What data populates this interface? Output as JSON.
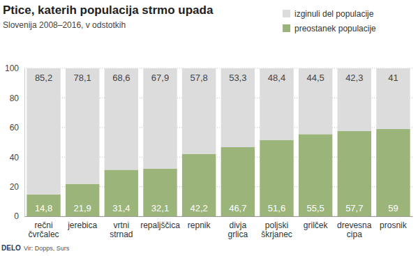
{
  "chart_data": {
    "type": "bar",
    "title": "Ptice, katerih populacija strmo upada",
    "subtitle": "Slovenija 2008–2016, v odstotkih",
    "source": "Vir: Dopps, Surs",
    "publisher": "DELO",
    "categories": [
      "rečni čvrčalec",
      "jerebica",
      "vrtni strnad",
      "repaljščica",
      "repnik",
      "divja grlica",
      "poljski škrjanec",
      "grilček",
      "drevesna cipa",
      "prosnik"
    ],
    "series": [
      {
        "name": "preostanek populacije",
        "color": "#9bb47a",
        "values": [
          14.8,
          21.9,
          31.4,
          32.1,
          42.2,
          46.7,
          51.6,
          55.5,
          57.7,
          59
        ],
        "value_labels": [
          "14,8",
          "21,9",
          "31,4",
          "32,1",
          "42,2",
          "46,7",
          "51,6",
          "55,5",
          "57,7",
          "59"
        ]
      },
      {
        "name": "izginuli del populacije",
        "color": "#dcdcdc",
        "values": [
          85.2,
          78.1,
          68.6,
          67.9,
          57.8,
          53.3,
          48.4,
          44.5,
          42.3,
          41
        ],
        "value_labels": [
          "85,2",
          "78,1",
          "68,6",
          "67,9",
          "57,8",
          "53,3",
          "48,4",
          "44,5",
          "42,3",
          "41"
        ]
      }
    ],
    "stacked": true,
    "data_labels": true,
    "ylim": [
      0,
      100
    ],
    "yticks": [
      0,
      20,
      40,
      60,
      80,
      100
    ],
    "grid": true,
    "legend": "top-right"
  }
}
